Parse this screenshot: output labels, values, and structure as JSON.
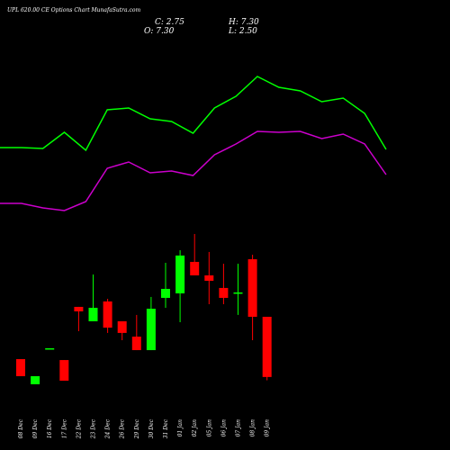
{
  "chart_data": [
    {
      "type": "line",
      "title": "UPL 620.00 CE Options Chart MunafaSutra.com",
      "ylim": [
        0,
        20
      ],
      "series": [
        {
          "color": "#00ff00",
          "values": [
            9.6,
            9.6,
            9.5,
            11.3,
            9.3,
            13.8,
            14.0,
            12.8,
            12.5,
            11.2,
            14.0,
            15.3,
            17.5,
            16.3,
            15.9,
            14.7,
            15.1,
            13.4,
            9.4
          ]
        },
        {
          "color": "#cc00cc",
          "values": [
            3.4,
            3.4,
            2.9,
            2.6,
            3.6,
            7.3,
            8.0,
            6.8,
            7.0,
            6.5,
            8.8,
            10.0,
            11.4,
            11.3,
            11.4,
            10.6,
            11.1,
            10.0,
            6.6
          ]
        }
      ]
    },
    {
      "type": "candlestick",
      "header": {
        "close": "C: 2.75",
        "high": "H: 7.30",
        "open": "O: 7.30",
        "low": "L: 2.50"
      },
      "categories": [
        "08 Dec",
        "09 Dec",
        "16 Dec",
        "17 Dec",
        "22 Dec",
        "23 Dec",
        "24 Dec",
        "26 Dec",
        "29 Dec",
        "30 Dec",
        "31 Dec",
        "01 Jan",
        "02 Jan",
        "05 Jan",
        "06 Jan",
        "07 Jan",
        "08 Jan",
        "09 Jan"
      ],
      "open": [
        4.1,
        2.2,
        4.92,
        4.03,
        8.05,
        6.96,
        8.46,
        6.96,
        5.8,
        4.78,
        8.73,
        9.07,
        11.45,
        10.43,
        9.48,
        9.14,
        11.65,
        7.3
      ],
      "high": [
        4.1,
        2.81,
        4.92,
        4.03,
        8.05,
        10.5,
        8.66,
        6.96,
        7.44,
        8.8,
        11.38,
        12.33,
        13.56,
        12.2,
        11.31,
        11.31,
        11.99,
        7.3
      ],
      "low": [
        2.81,
        2.2,
        4.92,
        2.47,
        6.21,
        6.96,
        6.08,
        5.53,
        4.78,
        4.78,
        7.98,
        6.89,
        10.43,
        8.25,
        8.25,
        7.44,
        5.53,
        2.5
      ],
      "close": [
        2.81,
        2.81,
        4.92,
        2.47,
        7.71,
        7.98,
        6.48,
        6.08,
        4.78,
        7.91,
        9.41,
        11.93,
        10.43,
        10.02,
        8.73,
        9.14,
        7.3,
        2.75
      ],
      "up_color": "#00ff00",
      "down_color": "#ff0000",
      "ylim": [
        0,
        16
      ]
    }
  ]
}
